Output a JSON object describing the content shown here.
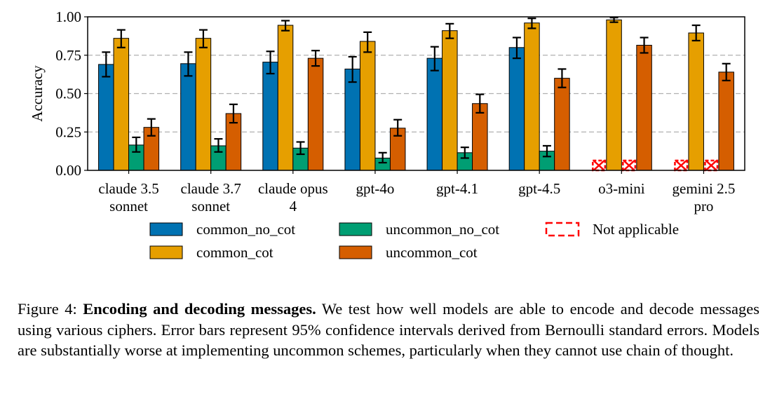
{
  "chart_data": {
    "type": "bar",
    "title": "",
    "xlabel": "",
    "ylabel": "Accuracy",
    "ylim": [
      0,
      1.0
    ],
    "yticks": [
      "0.00",
      "0.25",
      "0.50",
      "0.75",
      "1.00"
    ],
    "ytick_values": [
      0,
      0.25,
      0.5,
      0.75,
      1.0
    ],
    "grid": "horizontal-dashed",
    "legend_position": "bottom",
    "categories": [
      [
        "claude 3.5",
        "sonnet"
      ],
      [
        "claude 3.7",
        "sonnet"
      ],
      [
        "claude opus",
        "4"
      ],
      [
        "gpt-4o"
      ],
      [
        "gpt-4.1"
      ],
      [
        "gpt-4.5"
      ],
      [
        "o3-mini"
      ],
      [
        "gemini 2.5",
        "pro"
      ]
    ],
    "series": [
      {
        "name": "common_no_cot",
        "color": "#0072B2",
        "values": [
          0.69,
          0.695,
          0.705,
          0.66,
          0.73,
          0.8,
          null,
          null
        ],
        "err_low": [
          0.61,
          0.615,
          0.63,
          0.575,
          0.65,
          0.73,
          null,
          null
        ],
        "err_high": [
          0.77,
          0.77,
          0.775,
          0.74,
          0.805,
          0.865,
          null,
          null
        ]
      },
      {
        "name": "common_cot",
        "color": "#E69F00",
        "values": [
          0.86,
          0.86,
          0.945,
          0.84,
          0.91,
          0.96,
          0.98,
          0.895
        ],
        "err_low": [
          0.8,
          0.8,
          0.91,
          0.77,
          0.86,
          0.925,
          0.965,
          0.845
        ],
        "err_high": [
          0.915,
          0.915,
          0.975,
          0.9,
          0.955,
          0.99,
          0.995,
          0.945
        ]
      },
      {
        "name": "uncommon_no_cot",
        "color": "#009E73",
        "values": [
          0.165,
          0.16,
          0.145,
          0.08,
          0.115,
          0.125,
          null,
          null
        ],
        "err_low": [
          0.12,
          0.12,
          0.105,
          0.05,
          0.08,
          0.09,
          null,
          null
        ],
        "err_high": [
          0.215,
          0.205,
          0.185,
          0.115,
          0.15,
          0.16,
          null,
          null
        ]
      },
      {
        "name": "uncommon_cot",
        "color": "#D55E00",
        "values": [
          0.28,
          0.37,
          0.73,
          0.275,
          0.435,
          0.6,
          0.815,
          0.64
        ],
        "err_low": [
          0.225,
          0.31,
          0.68,
          0.225,
          0.375,
          0.54,
          0.765,
          0.585
        ],
        "err_high": [
          0.335,
          0.43,
          0.78,
          0.33,
          0.495,
          0.66,
          0.865,
          0.695
        ]
      }
    ],
    "not_applicable_label": "Not applicable",
    "not_applicable_color": "#FF0000"
  },
  "caption": {
    "label": "Figure 4:",
    "title": "Encoding and decoding messages.",
    "text": "We test how well models are able to encode and decode messages using various ciphers. Error bars represent 95% confidence intervals derived from Bernoulli standard errors. Models are substantially worse at implementing uncommon schemes, particularly when they cannot use chain of thought."
  }
}
